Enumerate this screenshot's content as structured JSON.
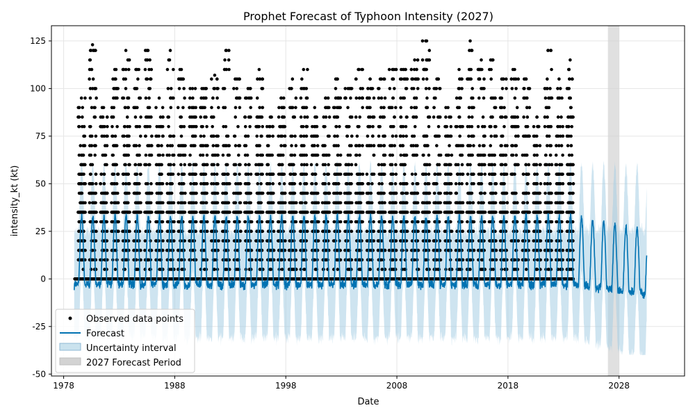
{
  "chart_data": {
    "type": "line",
    "title": "Prophet Forecast of Typhoon Intensity (2027)",
    "xlabel": "Date",
    "ylabel": "intensity_kt (kt)",
    "xlim": [
      1976.9,
      2033.9
    ],
    "ylim": [
      -51,
      133
    ],
    "x_ticks": [
      1978,
      1988,
      1998,
      2008,
      2018,
      2028
    ],
    "y_ticks": [
      -50,
      -25,
      0,
      25,
      50,
      75,
      100,
      125
    ],
    "grid": true,
    "legend_position": "lower-left",
    "colors": {
      "observed": "#000000",
      "forecast": "#0072b2",
      "uncertainty": "#a6cee3",
      "forecast_period": "#d3d3d3"
    },
    "observed_range": [
      1979.0,
      2023.9
    ],
    "observed_max_by_year": [
      {
        "year": 1979,
        "max": 95
      },
      {
        "year": 1980,
        "max": 123
      },
      {
        "year": 1981,
        "max": 90
      },
      {
        "year": 1982,
        "max": 110
      },
      {
        "year": 1983,
        "max": 120
      },
      {
        "year": 1984,
        "max": 110
      },
      {
        "year": 1985,
        "max": 120
      },
      {
        "year": 1986,
        "max": 95
      },
      {
        "year": 1987,
        "max": 120
      },
      {
        "year": 1988,
        "max": 110
      },
      {
        "year": 1989,
        "max": 100
      },
      {
        "year": 1990,
        "max": 100
      },
      {
        "year": 1991,
        "max": 107
      },
      {
        "year": 1992,
        "max": 120
      },
      {
        "year": 1993,
        "max": 105
      },
      {
        "year": 1994,
        "max": 100
      },
      {
        "year": 1995,
        "max": 110
      },
      {
        "year": 1996,
        "max": 85
      },
      {
        "year": 1997,
        "max": 95
      },
      {
        "year": 1998,
        "max": 105
      },
      {
        "year": 1999,
        "max": 110
      },
      {
        "year": 2000,
        "max": 90
      },
      {
        "year": 2001,
        "max": 95
      },
      {
        "year": 2002,
        "max": 105
      },
      {
        "year": 2003,
        "max": 100
      },
      {
        "year": 2004,
        "max": 110
      },
      {
        "year": 2005,
        "max": 105
      },
      {
        "year": 2006,
        "max": 105
      },
      {
        "year": 2007,
        "max": 110
      },
      {
        "year": 2008,
        "max": 110
      },
      {
        "year": 2009,
        "max": 115
      },
      {
        "year": 2010,
        "max": 125
      },
      {
        "year": 2011,
        "max": 105
      },
      {
        "year": 2012,
        "max": 90
      },
      {
        "year": 2013,
        "max": 110
      },
      {
        "year": 2014,
        "max": 125
      },
      {
        "year": 2015,
        "max": 115
      },
      {
        "year": 2016,
        "max": 115
      },
      {
        "year": 2017,
        "max": 105
      },
      {
        "year": 2018,
        "max": 110
      },
      {
        "year": 2019,
        "max": 105
      },
      {
        "year": 2020,
        "max": 85
      },
      {
        "year": 2021,
        "max": 120
      },
      {
        "year": 2022,
        "max": 105
      },
      {
        "year": 2023,
        "max": 115
      }
    ],
    "series": [
      {
        "name": "Observed data points",
        "kind": "scatter",
        "note_values": "dense daily observations mostly between 0 and 115 kt, many at 0 and 35 kt"
      },
      {
        "name": "Forecast",
        "kind": "line",
        "seasonal_peak": 33,
        "seasonal_trough": -3,
        "forecast_peak_end": 25,
        "forecast_trough_end": -8,
        "x_end": 2030.5
      },
      {
        "name": "Uncertainty interval",
        "kind": "band",
        "upper_peak": 62,
        "lower_trough": -40
      },
      {
        "name": "2027 Forecast Period",
        "kind": "span",
        "x_start": 2027.0,
        "x_end": 2028.0
      }
    ]
  },
  "legend": {
    "items": [
      {
        "label": "Observed data points",
        "symbol": "dot"
      },
      {
        "label": "Forecast",
        "symbol": "line"
      },
      {
        "label": "Uncertainty interval",
        "symbol": "band"
      },
      {
        "label": "2027 Forecast Period",
        "symbol": "span"
      }
    ]
  }
}
